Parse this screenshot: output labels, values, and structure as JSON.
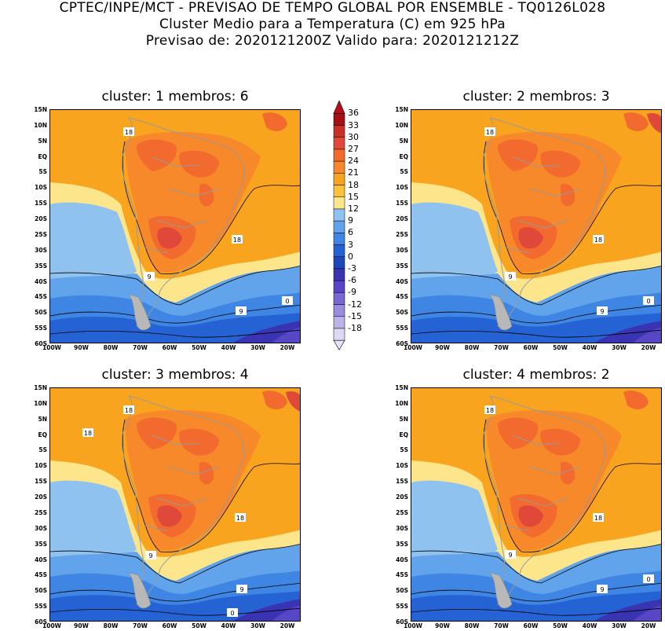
{
  "header": {
    "line1": "CPTEC/INPE/MCT - PREVISAO DE TEMPO GLOBAL POR ENSEMBLE - TQ0126L028",
    "line2": "Cluster Medio para a Temperatura (C) em 925 hPa",
    "line3": "Previsao de: 2020121200Z   Valido para: 2020121212Z"
  },
  "lat_labels": [
    "15N",
    "10N",
    "5N",
    "EQ",
    "5S",
    "10S",
    "15S",
    "20S",
    "25S",
    "30S",
    "35S",
    "40S",
    "45S",
    "50S",
    "55S",
    "60S"
  ],
  "lon_labels": [
    "100W",
    "90W",
    "80W",
    "70W",
    "60W",
    "50W",
    "40W",
    "30W",
    "20W"
  ],
  "colorbar": {
    "labels": [
      "36",
      "33",
      "30",
      "27",
      "24",
      "21",
      "18",
      "15",
      "12",
      "9",
      "6",
      "3",
      "0",
      "-3",
      "-6",
      "-9",
      "-12",
      "-15",
      "-18"
    ],
    "colors": [
      "#a50f15",
      "#c8302a",
      "#e0483a",
      "#f26a2e",
      "#f7892a",
      "#f9a41f",
      "#fac23a",
      "#fde58c",
      "#8fc2ef",
      "#61a4eb",
      "#3f85e3",
      "#2563d5",
      "#1e47b8",
      "#3a33b2",
      "#5747c6",
      "#7867d5",
      "#9a8cde",
      "#bdb3ea",
      "#ddd7f4"
    ],
    "top_color": "#b40f1a",
    "bottom_color": "#e8e3f8"
  },
  "panels": [
    {
      "title": "cluster: 1   membros: 6",
      "contour_labels": [
        "18",
        "18",
        "9",
        "9",
        "0"
      ]
    },
    {
      "title": "cluster: 2   membros: 3",
      "contour_labels": [
        "18",
        "18",
        "9",
        "9",
        "0"
      ]
    },
    {
      "title": "cluster: 3   membros: 4",
      "contour_labels": [
        "18",
        "18",
        "18",
        "9",
        "9",
        "0"
      ]
    },
    {
      "title": "cluster: 4   membros: 2",
      "contour_labels": [
        "18",
        "18",
        "9",
        "9",
        "0"
      ]
    }
  ]
}
